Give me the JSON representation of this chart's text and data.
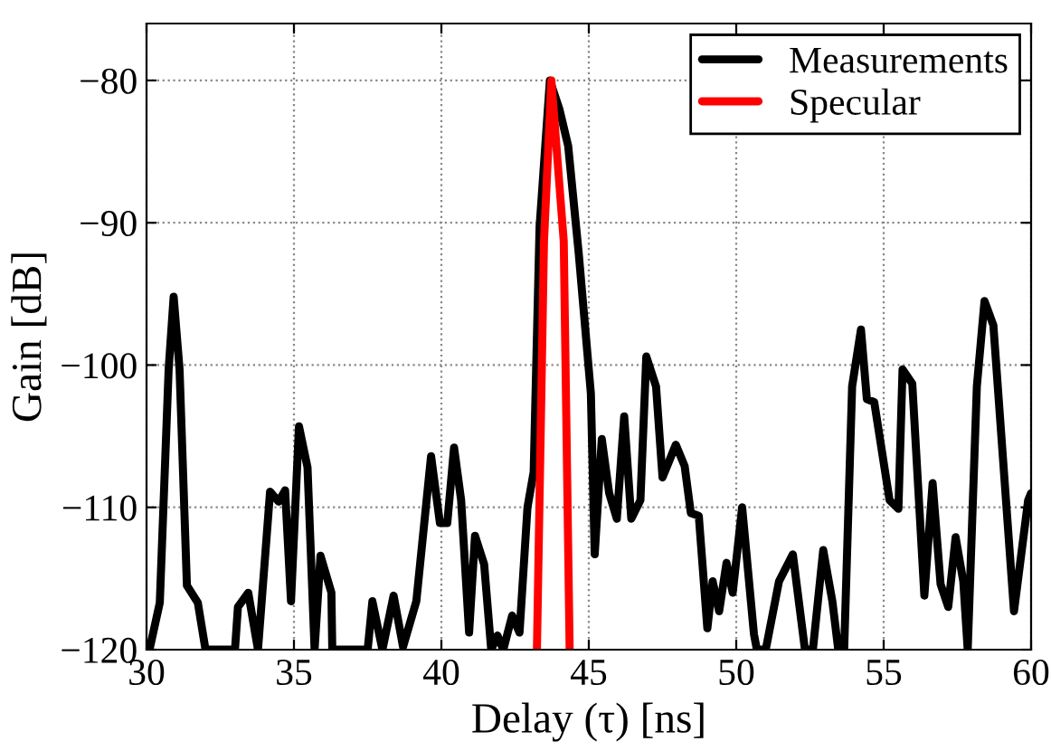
{
  "chart_data": {
    "type": "line",
    "xlabel": "Delay (τ) [ns]",
    "ylabel": "Gain [dB]",
    "xlim": [
      30,
      60
    ],
    "ylim": [
      -120,
      -76
    ],
    "xticks": [
      30,
      35,
      40,
      45,
      50,
      55,
      60
    ],
    "yticks": [
      -120,
      -110,
      -100,
      -90,
      -80
    ],
    "grid": true,
    "legend": "top right",
    "line_style": "solid",
    "marker": "none",
    "series": [
      {
        "name": "Measurements",
        "color": "#000000",
        "x": [
          30.1,
          30.45,
          30.75,
          30.92,
          31.12,
          31.37,
          31.74,
          32.0,
          33.0,
          33.1,
          33.45,
          33.78,
          34.19,
          34.48,
          34.7,
          34.9,
          35.17,
          35.46,
          35.7,
          35.9,
          36.27,
          36.3,
          37.5,
          37.66,
          38.0,
          38.38,
          38.7,
          39.15,
          39.65,
          39.95,
          40.2,
          40.43,
          40.67,
          40.94,
          41.14,
          41.45,
          41.69,
          41.9,
          42.1,
          42.4,
          42.65,
          42.92,
          43.13,
          43.33,
          43.68,
          44.0,
          44.3,
          44.66,
          45.07,
          45.2,
          45.44,
          45.69,
          45.95,
          46.2,
          46.44,
          46.75,
          46.95,
          47.28,
          47.5,
          47.95,
          48.25,
          48.46,
          48.73,
          49.02,
          49.2,
          49.42,
          49.67,
          49.88,
          50.2,
          50.6,
          50.7,
          51.0,
          51.45,
          51.92,
          52.33,
          52.6,
          52.95,
          53.26,
          53.46,
          53.66,
          53.93,
          54.23,
          54.43,
          54.68,
          55.2,
          55.5,
          55.64,
          55.97,
          56.38,
          56.66,
          56.93,
          57.19,
          57.44,
          57.7,
          57.85,
          58.16,
          58.42,
          58.72,
          59.42,
          59.9,
          60.0
        ],
        "values": [
          -120,
          -116.7,
          -100.3,
          -95.2,
          -100.3,
          -115.5,
          -116.7,
          -120,
          -120,
          -117,
          -116,
          -120,
          -108.9,
          -109.6,
          -108.8,
          -116.6,
          -104.3,
          -107.2,
          -120,
          -113.4,
          -116,
          -120,
          -120,
          -116.6,
          -120,
          -116.2,
          -119.8,
          -116.6,
          -106.4,
          -111.1,
          -111.1,
          -105.8,
          -109.5,
          -118.8,
          -112,
          -114,
          -120,
          -119,
          -120,
          -117.6,
          -118.8,
          -110,
          -107.5,
          -90.3,
          -80,
          -82,
          -84.6,
          -92.2,
          -102,
          -113.3,
          -105.2,
          -109,
          -110.8,
          -103.6,
          -110.8,
          -109.5,
          -99.4,
          -101.5,
          -107.9,
          -105.6,
          -107.1,
          -110.4,
          -110.6,
          -118.5,
          -115.2,
          -117.3,
          -113.9,
          -116,
          -110,
          -118.9,
          -120,
          -120,
          -115.2,
          -113.3,
          -120,
          -120,
          -113,
          -116.6,
          -120,
          -120,
          -101.5,
          -97.5,
          -102.4,
          -102.6,
          -109.5,
          -110.1,
          -100.3,
          -101.3,
          -116.2,
          -108.3,
          -115.4,
          -117,
          -112.1,
          -115.2,
          -120,
          -101.5,
          -95.5,
          -97.2,
          -117.3,
          -109.5,
          -109
        ]
      },
      {
        "name": "Specular",
        "color": "#ff0000",
        "x": [
          43.24,
          43.48,
          43.73,
          44.15,
          44.35
        ],
        "values": [
          -120,
          -91.3,
          -80,
          -91.3,
          -120
        ]
      }
    ]
  }
}
